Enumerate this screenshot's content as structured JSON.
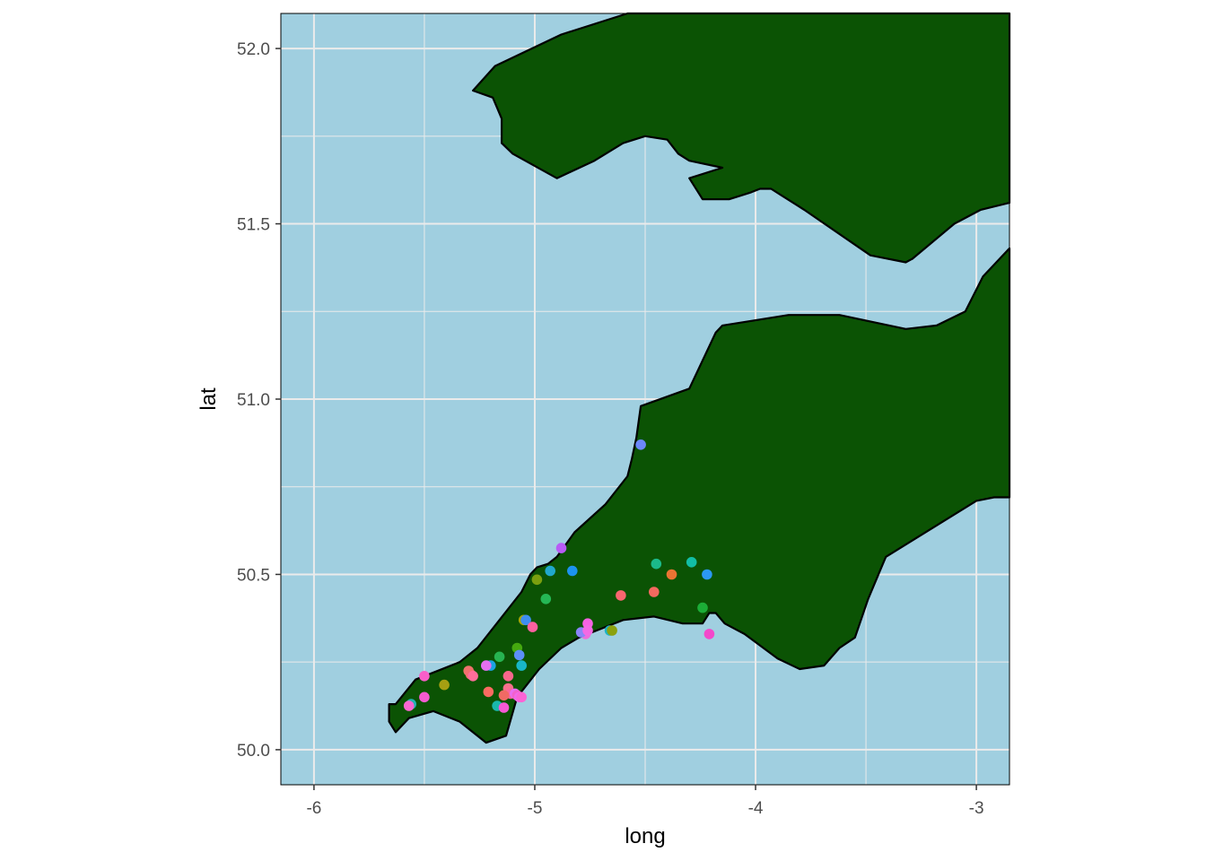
{
  "chart_data": {
    "type": "scatter",
    "title": "",
    "xlabel": "long",
    "ylabel": "lat",
    "xlim": [
      -6.15,
      -2.85
    ],
    "ylim": [
      49.9,
      52.1
    ],
    "x_ticks": [
      -6,
      -5,
      -4,
      -3
    ],
    "x_tick_labels": [
      "-6",
      "-5",
      "-4",
      "-3"
    ],
    "y_ticks": [
      50.0,
      50.5,
      51.0,
      51.5,
      52.0
    ],
    "y_tick_labels": [
      "50.0",
      "50.5",
      "51.0",
      "51.5",
      "52.0"
    ],
    "grid": true,
    "legend": "none",
    "colors": {
      "sea": "#a0cfe0",
      "land": "#0b5304",
      "coastline": "#000000",
      "grid": "#ebebeb"
    },
    "land_polygons": [
      {
        "name": "wales",
        "lon": [
          -5.28,
          -5.19,
          -5.15,
          -5.15,
          -5.1,
          -4.9,
          -4.73,
          -4.6,
          -4.5,
          -4.4,
          -4.35,
          -4.3,
          -4.15,
          -4.3,
          -4.24,
          -4.12,
          -4.02,
          -3.98,
          -3.93,
          -3.88,
          -3.78,
          -3.48,
          -3.32,
          -3.29,
          -3.1,
          -2.98,
          -2.85,
          -2.85,
          -4.58,
          -4.88,
          -5.18,
          -5.28
        ],
        "lat": [
          51.88,
          51.86,
          51.8,
          51.73,
          51.7,
          51.63,
          51.68,
          51.73,
          51.75,
          51.74,
          51.7,
          51.68,
          51.66,
          51.63,
          51.57,
          51.57,
          51.59,
          51.6,
          51.6,
          51.58,
          51.54,
          51.41,
          51.39,
          51.4,
          51.5,
          51.54,
          51.56,
          52.1,
          52.1,
          52.04,
          51.95,
          51.88
        ]
      },
      {
        "name": "south-west-england",
        "lon": [
          -5.66,
          -5.66,
          -5.63,
          -5.57,
          -5.46,
          -5.34,
          -5.22,
          -5.13,
          -5.08,
          -4.98,
          -4.88,
          -4.8,
          -4.72,
          -4.6,
          -4.46,
          -4.33,
          -4.24,
          -4.21,
          -4.18,
          -4.14,
          -4.05,
          -3.9,
          -3.8,
          -3.69,
          -3.62,
          -3.55,
          -3.49,
          -3.41,
          -3.0,
          -2.92,
          -2.85,
          -2.85,
          -2.97,
          -3.05,
          -3.18,
          -3.32,
          -3.62,
          -3.85,
          -4.15,
          -4.18,
          -4.3,
          -4.52,
          -4.54,
          -4.56,
          -4.58,
          -4.68,
          -4.82,
          -4.9,
          -4.94,
          -4.99,
          -5.02,
          -5.06,
          -5.16,
          -5.26,
          -5.34,
          -5.54,
          -5.63,
          -5.66
        ],
        "lat": [
          50.13,
          50.08,
          50.05,
          50.09,
          50.11,
          50.08,
          50.02,
          50.04,
          50.15,
          50.23,
          50.29,
          50.32,
          50.34,
          50.37,
          50.38,
          50.36,
          50.36,
          50.39,
          50.39,
          50.36,
          50.33,
          50.26,
          50.23,
          50.24,
          50.29,
          50.32,
          50.43,
          50.55,
          50.71,
          50.72,
          50.72,
          51.43,
          51.35,
          51.25,
          51.21,
          51.2,
          51.24,
          51.24,
          51.21,
          51.19,
          51.03,
          50.98,
          50.89,
          50.83,
          50.78,
          50.7,
          50.62,
          50.55,
          50.53,
          50.52,
          50.5,
          50.45,
          50.37,
          50.29,
          50.25,
          50.2,
          50.13,
          50.13
        ]
      }
    ],
    "points": {
      "x": [
        -4.52,
        -4.88,
        -4.29,
        -4.45,
        -4.22,
        -4.38,
        -4.83,
        -4.93,
        -4.99,
        -4.95,
        -4.61,
        -4.46,
        -4.24,
        -4.21,
        -5.05,
        -5.04,
        -5.01,
        -4.76,
        -4.77,
        -4.79,
        -4.76,
        -4.66,
        -4.65,
        -5.08,
        -5.07,
        -5.16,
        -5.06,
        -5.2,
        -5.22,
        -5.3,
        -5.29,
        -5.28,
        -5.12,
        -5.5,
        -5.41,
        -5.5,
        -5.21,
        -5.12,
        -5.11,
        -5.09,
        -5.14,
        -5.08,
        -5.07,
        -5.06,
        -5.17,
        -5.14,
        -5.56,
        -5.57
      ],
      "y": [
        50.87,
        50.575,
        50.535,
        50.53,
        50.5,
        50.5,
        50.51,
        50.51,
        50.485,
        50.43,
        50.44,
        50.45,
        50.405,
        50.33,
        50.37,
        50.37,
        50.35,
        50.36,
        50.33,
        50.335,
        50.34,
        50.34,
        50.34,
        50.29,
        50.27,
        50.265,
        50.24,
        50.24,
        50.24,
        50.225,
        50.215,
        50.21,
        50.21,
        50.21,
        50.185,
        50.15,
        50.165,
        50.175,
        50.16,
        50.16,
        50.155,
        50.155,
        50.15,
        50.15,
        50.125,
        50.12,
        50.13,
        50.125
      ],
      "colors": [
        "#6c87fb",
        "#b85bf6",
        "#12bea5",
        "#1bb98a",
        "#2b98f4",
        "#ea7433",
        "#1c93ef",
        "#21a8cc",
        "#7a9f0f",
        "#25b755",
        "#f8666f",
        "#f4695f",
        "#1cad37",
        "#f348cb",
        "#a5a408",
        "#3e8ef1",
        "#fc61a0",
        "#f563e2",
        "#ee6ddd",
        "#8a85f7",
        "#f36ae4",
        "#1cb4c6",
        "#8ba10d",
        "#45a90f",
        "#5c8ffa",
        "#27b451",
        "#18b6c7",
        "#1ba3e2",
        "#e570f1",
        "#f0726d",
        "#f26f6f",
        "#fe6d9a",
        "#f7678c",
        "#f95ec9",
        "#a69f12",
        "#f45bd1",
        "#fa6b61",
        "#f8708b",
        "#fb6599",
        "#e86cf1",
        "#f06a64",
        "#f261cd",
        "#f268ea",
        "#fb63d5",
        "#1ab8ad",
        "#f659d5",
        "#22b3b1",
        "#fa67d1"
      ]
    }
  }
}
